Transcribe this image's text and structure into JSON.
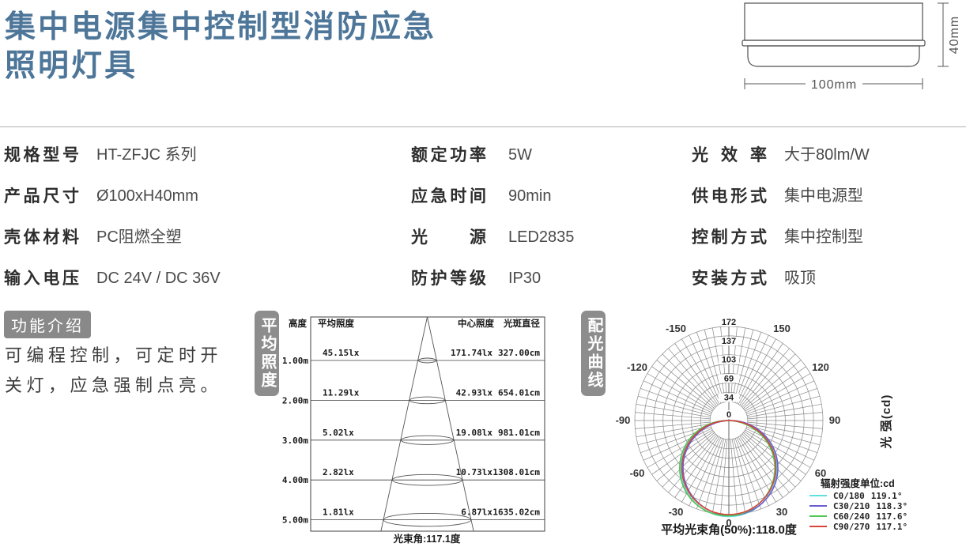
{
  "header": {
    "title_lines": [
      "集中电源集中控制型消防应急",
      "照明灯具"
    ]
  },
  "drawing": {
    "height_label": "40mm",
    "width_label": "100mm"
  },
  "specs": {
    "columns": [
      {
        "rows": [
          {
            "label": "规格型号",
            "value": "HT-ZFJC 系列"
          },
          {
            "label": "产品尺寸",
            "value": "Ø100xH40mm"
          },
          {
            "label": "壳体材料",
            "value": "PC阻燃全塑"
          },
          {
            "label": "输入电压",
            "value": "DC 24V / DC 36V"
          }
        ]
      },
      {
        "rows": [
          {
            "label": "额定功率",
            "value": "5W"
          },
          {
            "label": "应急时间",
            "value": "90min"
          },
          {
            "label": "光源",
            "value": "LED2835"
          },
          {
            "label": "防护等级",
            "value": "IP30"
          }
        ]
      },
      {
        "rows": [
          {
            "label": "光效率",
            "value": "大于80lm/W"
          },
          {
            "label": "供电形式",
            "value": "集中电源型"
          },
          {
            "label": "控制方式",
            "value": "集中控制型"
          },
          {
            "label": "安装方式",
            "value": "吸顶"
          }
        ]
      }
    ]
  },
  "features": {
    "badge": "功能介绍",
    "lines": [
      "可编程控制，可定时开",
      "关灯，应急强制点亮。"
    ]
  },
  "chart_data": [
    {
      "type": "table",
      "panel_label": "平均照度",
      "columns": [
        "高度",
        "平均照度",
        "中心照度",
        "光斑直径"
      ],
      "rows": [
        {
          "height": "1.00m",
          "avg": "45.15lx",
          "center": "171.74lx",
          "diameter": "327.00cm"
        },
        {
          "height": "2.00m",
          "avg": "11.29lx",
          "center": "42.93lx",
          "diameter": "654.01cm"
        },
        {
          "height": "3.00m",
          "avg": "5.02lx",
          "center": "19.08lx",
          "diameter": "981.01cm"
        },
        {
          "height": "4.00m",
          "avg": "2.82lx",
          "center": "10.73lx",
          "diameter": "1308.01cm"
        },
        {
          "height": "5.00m",
          "avg": "1.81lx",
          "center": "6.87lx",
          "diameter": "1635.02cm"
        }
      ],
      "footer": "光束角:117.1度"
    },
    {
      "type": "polar-line",
      "panel_label": "配光曲线",
      "axis_label": "光 强(cd)",
      "legend_title": "辐射强度单位:cd",
      "radial_max": 172,
      "radial_ticks": [
        0,
        34,
        69,
        103,
        137,
        172
      ],
      "angle_ticks_deg": [
        -150,
        -120,
        -90,
        -60,
        -30,
        0,
        30,
        60,
        90,
        120,
        150
      ],
      "series": [
        {
          "name": "C0/180",
          "beam_angle": "119.1°",
          "color": "#63dede",
          "peak_cd": 172
        },
        {
          "name": "C30/210",
          "beam_angle": "118.3°",
          "color": "#6a5ed2",
          "peak_cd": 172
        },
        {
          "name": "C60/240",
          "beam_angle": "117.6°",
          "color": "#4fc653",
          "peak_cd": 172
        },
        {
          "name": "C90/270",
          "beam_angle": "117.1°",
          "color": "#d8443a",
          "peak_cd": 172
        }
      ],
      "footer": "平均光束角(50%):118.0度"
    }
  ]
}
